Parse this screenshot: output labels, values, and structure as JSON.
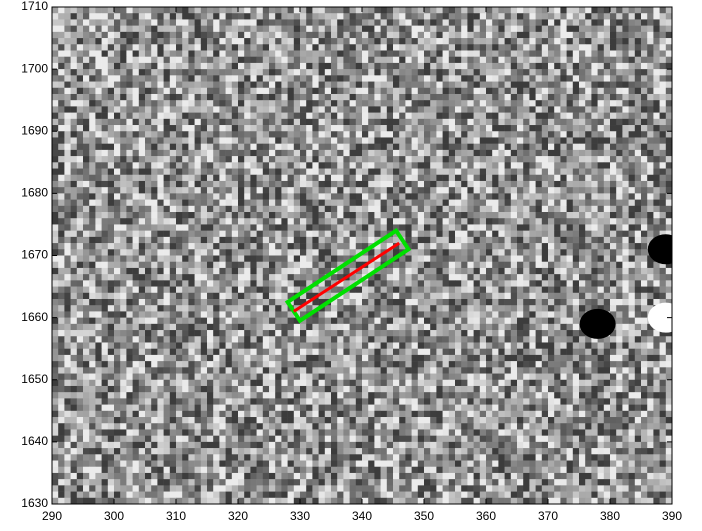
{
  "chart_data": {
    "type": "image",
    "xlim": [
      290,
      390
    ],
    "xticks": [
      290,
      300,
      310,
      320,
      330,
      340,
      350,
      360,
      370,
      380,
      390
    ],
    "ylim": [
      1630,
      1710
    ],
    "yticks": [
      1630,
      1640,
      1650,
      1660,
      1670,
      1680,
      1690,
      1700,
      1710
    ],
    "overlays": [
      {
        "kind": "polygon",
        "color": "#00e000",
        "x": [
          328,
          345.5,
          347.5,
          330
        ],
        "y": [
          1662.5,
          1674,
          1671,
          1659.5
        ]
      },
      {
        "kind": "line",
        "color": "#ff0000",
        "x": [
          329,
          346
        ],
        "y": [
          1661,
          1672
        ]
      }
    ],
    "blobs": {
      "x": [
        378,
        389,
        389
      ],
      "y": [
        1659,
        1660,
        1671
      ],
      "colors": [
        "#000000",
        "#ffffff",
        "#000000"
      ]
    }
  }
}
